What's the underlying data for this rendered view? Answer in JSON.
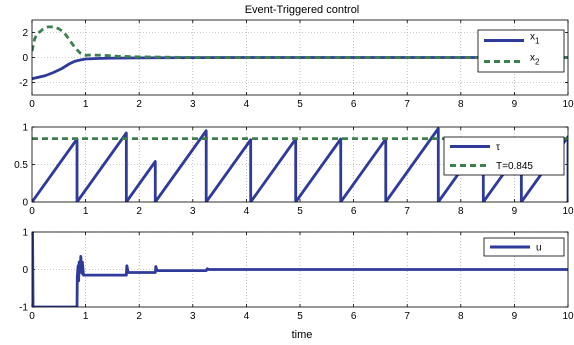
{
  "title": "Event-Triggered control",
  "xlabel": "time",
  "colors": {
    "blue": "#2f3a9a",
    "green": "#3d7f4f",
    "grid": "#9a9a9a"
  },
  "chart_data": [
    {
      "type": "line",
      "title": "Event-Triggered control",
      "xlim": [
        0,
        10
      ],
      "ylim": [
        -3,
        3
      ],
      "xticks": [
        0,
        1,
        2,
        3,
        4,
        5,
        6,
        7,
        8,
        9,
        10
      ],
      "yticks": [
        -2,
        0,
        2
      ],
      "grid": true,
      "legend": "top-right",
      "series": [
        {
          "name": "x_1",
          "color": "#2f3a9a",
          "dash": false,
          "x": [
            0,
            0.1,
            0.25,
            0.4,
            0.55,
            0.7,
            0.8,
            0.9,
            1.0,
            1.2,
            1.5,
            2.0,
            2.5,
            3.0,
            4.0,
            10.0
          ],
          "y": [
            -1.7,
            -1.6,
            -1.45,
            -1.2,
            -0.9,
            -0.5,
            -0.3,
            -0.2,
            -0.12,
            -0.08,
            -0.05,
            -0.03,
            -0.02,
            -0.01,
            0,
            0
          ]
        },
        {
          "name": "x_2",
          "color": "#3d7f4f",
          "dash": true,
          "x": [
            0,
            0.05,
            0.1,
            0.2,
            0.3,
            0.4,
            0.5,
            0.6,
            0.7,
            0.8,
            0.9,
            1.0,
            1.1,
            1.3,
            1.6,
            2.0,
            3.0,
            10.0
          ],
          "y": [
            0.5,
            1.5,
            1.9,
            2.25,
            2.45,
            2.45,
            2.3,
            2.0,
            1.4,
            0.8,
            0.35,
            0.18,
            0.2,
            0.18,
            0.1,
            0.05,
            0,
            0
          ]
        }
      ]
    },
    {
      "type": "line",
      "xlim": [
        0,
        10
      ],
      "ylim": [
        0,
        1
      ],
      "xticks": [
        0,
        1,
        2,
        3,
        4,
        5,
        6,
        7,
        8,
        9,
        10
      ],
      "yticks": [
        0,
        0.5,
        1
      ],
      "grid": true,
      "legend": "top-right",
      "series": [
        {
          "name": "τ",
          "color": "#2f3a9a",
          "dash": false,
          "event_times": [
            0,
            0.84,
            1.76,
            2.3,
            3.25,
            4.08,
            4.92,
            5.76,
            6.6,
            7.58,
            8.42,
            9.13,
            10.0
          ],
          "drop_to": 0
        },
        {
          "name": "T=0.845",
          "color": "#3d7f4f",
          "dash": true,
          "x": [
            0,
            10
          ],
          "y": [
            0.845,
            0.845
          ]
        }
      ]
    },
    {
      "type": "line",
      "xlim": [
        0,
        10
      ],
      "ylim": [
        -1,
        1
      ],
      "xticks": [
        0,
        1,
        2,
        3,
        4,
        5,
        6,
        7,
        8,
        9,
        10
      ],
      "yticks": [
        -1,
        0,
        1
      ],
      "grid": true,
      "legend": "top-right",
      "series": [
        {
          "name": "u",
          "color": "#2f3a9a",
          "dash": false,
          "x": [
            0,
            0.01,
            0.02,
            0.84,
            0.845,
            0.86,
            0.87,
            0.88,
            0.9,
            0.91,
            0.93,
            0.94,
            0.96,
            1.76,
            1.77,
            1.79,
            1.8,
            2.3,
            2.31,
            2.33,
            2.35,
            3.25,
            3.27,
            3.3,
            10.0
          ],
          "y": [
            1,
            1,
            -1,
            -1,
            -0.2,
            0.1,
            -0.3,
            0.2,
            -0.05,
            0.35,
            -0.1,
            0.2,
            -0.15,
            -0.15,
            0.1,
            -0.05,
            -0.08,
            -0.08,
            0.08,
            -0.02,
            -0.03,
            -0.03,
            0.02,
            0,
            0
          ]
        }
      ]
    }
  ]
}
